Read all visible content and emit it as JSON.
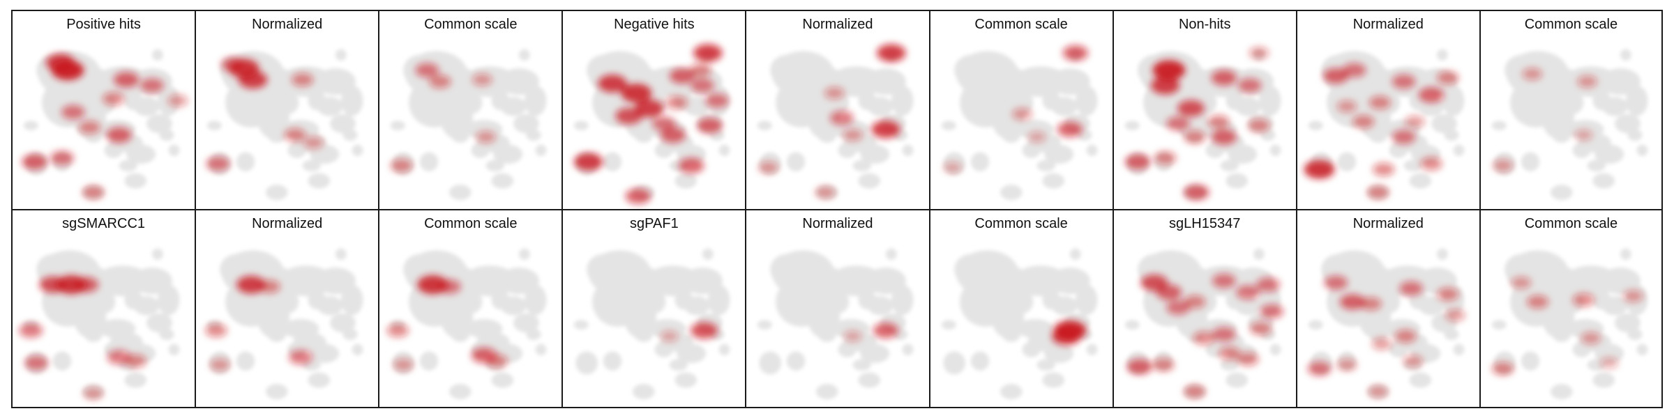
{
  "colors": {
    "background_density": "#e4e4e4",
    "signal": "#c8141c",
    "border": "#1a1a1a"
  },
  "rows": [
    {
      "panels": [
        {
          "title": "Positive hits",
          "hotspots": [
            [
              0.3,
              0.28,
              1.0
            ],
            [
              0.26,
              0.24,
              0.8
            ],
            [
              0.33,
              0.5,
              0.5
            ],
            [
              0.62,
              0.33,
              0.6
            ],
            [
              0.76,
              0.36,
              0.5
            ],
            [
              0.55,
              0.43,
              0.4
            ],
            [
              0.58,
              0.62,
              0.6
            ],
            [
              0.42,
              0.58,
              0.4
            ],
            [
              0.12,
              0.76,
              0.6
            ],
            [
              0.27,
              0.74,
              0.5
            ],
            [
              0.44,
              0.92,
              0.4
            ],
            [
              0.9,
              0.44,
              0.3
            ]
          ]
        },
        {
          "title": "Normalized",
          "hotspots": [
            [
              0.26,
              0.27,
              0.9
            ],
            [
              0.31,
              0.33,
              0.8
            ],
            [
              0.2,
              0.25,
              0.5
            ],
            [
              0.58,
              0.33,
              0.4
            ],
            [
              0.54,
              0.62,
              0.4
            ],
            [
              0.12,
              0.77,
              0.5
            ],
            [
              0.64,
              0.66,
              0.3
            ]
          ]
        },
        {
          "title": "Common scale",
          "hotspots": [
            [
              0.26,
              0.28,
              0.5
            ],
            [
              0.33,
              0.34,
              0.4
            ],
            [
              0.56,
              0.33,
              0.3
            ],
            [
              0.58,
              0.63,
              0.3
            ],
            [
              0.12,
              0.78,
              0.4
            ]
          ]
        },
        {
          "title": "Negative hits",
          "hotspots": [
            [
              0.27,
              0.35,
              0.8
            ],
            [
              0.4,
              0.4,
              0.9
            ],
            [
              0.47,
              0.48,
              0.8
            ],
            [
              0.36,
              0.52,
              0.7
            ],
            [
              0.65,
              0.31,
              0.6
            ],
            [
              0.76,
              0.36,
              0.5
            ],
            [
              0.84,
              0.44,
              0.5
            ],
            [
              0.55,
              0.56,
              0.5
            ],
            [
              0.6,
              0.62,
              0.6
            ],
            [
              0.8,
              0.57,
              0.6
            ],
            [
              0.75,
              0.28,
              0.4
            ],
            [
              0.14,
              0.76,
              0.8
            ],
            [
              0.7,
              0.78,
              0.6
            ],
            [
              0.79,
              0.19,
              0.8
            ],
            [
              0.41,
              0.94,
              0.6
            ],
            [
              0.62,
              0.45,
              0.4
            ]
          ]
        },
        {
          "title": "Normalized",
          "hotspots": [
            [
              0.79,
              0.19,
              0.8
            ],
            [
              0.76,
              0.59,
              0.8
            ],
            [
              0.52,
              0.53,
              0.5
            ],
            [
              0.48,
              0.4,
              0.3
            ],
            [
              0.58,
              0.62,
              0.3
            ],
            [
              0.12,
              0.79,
              0.3
            ],
            [
              0.43,
              0.92,
              0.3
            ]
          ]
        },
        {
          "title": "Common scale",
          "hotspots": [
            [
              0.79,
              0.19,
              0.6
            ],
            [
              0.76,
              0.59,
              0.6
            ],
            [
              0.5,
              0.51,
              0.3
            ],
            [
              0.58,
              0.63,
              0.2
            ],
            [
              0.12,
              0.79,
              0.2
            ]
          ]
        },
        {
          "title": "Non-hits",
          "hotspots": [
            [
              0.3,
              0.28,
              1.0
            ],
            [
              0.28,
              0.36,
              0.8
            ],
            [
              0.42,
              0.48,
              0.7
            ],
            [
              0.35,
              0.56,
              0.5
            ],
            [
              0.6,
              0.32,
              0.6
            ],
            [
              0.74,
              0.36,
              0.5
            ],
            [
              0.57,
              0.55,
              0.4
            ],
            [
              0.6,
              0.63,
              0.6
            ],
            [
              0.79,
              0.57,
              0.4
            ],
            [
              0.44,
              0.63,
              0.4
            ],
            [
              0.13,
              0.76,
              0.6
            ],
            [
              0.28,
              0.74,
              0.4
            ],
            [
              0.45,
              0.92,
              0.6
            ],
            [
              0.79,
              0.19,
              0.3
            ]
          ]
        },
        {
          "title": "Normalized",
          "hotspots": [
            [
              0.21,
              0.31,
              0.6
            ],
            [
              0.31,
              0.28,
              0.5
            ],
            [
              0.45,
              0.45,
              0.4
            ],
            [
              0.58,
              0.34,
              0.5
            ],
            [
              0.73,
              0.41,
              0.6
            ],
            [
              0.82,
              0.32,
              0.4
            ],
            [
              0.36,
              0.55,
              0.4
            ],
            [
              0.58,
              0.63,
              0.5
            ],
            [
              0.12,
              0.8,
              0.9
            ],
            [
              0.47,
              0.8,
              0.4
            ],
            [
              0.73,
              0.77,
              0.4
            ],
            [
              0.44,
              0.92,
              0.4
            ],
            [
              0.64,
              0.55,
              0.3
            ],
            [
              0.27,
              0.47,
              0.3
            ]
          ]
        },
        {
          "title": "Common scale",
          "hotspots": [
            [
              0.28,
              0.3,
              0.3
            ],
            [
              0.58,
              0.34,
              0.3
            ],
            [
              0.12,
              0.78,
              0.3
            ],
            [
              0.56,
              0.62,
              0.2
            ]
          ]
        }
      ]
    },
    {
      "panels": [
        {
          "title": "sgSMARCC1",
          "hotspots": [
            [
              0.22,
              0.36,
              0.7
            ],
            [
              0.32,
              0.36,
              0.9
            ],
            [
              0.4,
              0.36,
              0.6
            ],
            [
              0.58,
              0.74,
              0.5
            ],
            [
              0.67,
              0.76,
              0.4
            ],
            [
              0.1,
              0.6,
              0.5
            ],
            [
              0.13,
              0.77,
              0.5
            ],
            [
              0.44,
              0.93,
              0.3
            ]
          ]
        },
        {
          "title": "Normalized",
          "hotspots": [
            [
              0.3,
              0.36,
              0.8
            ],
            [
              0.4,
              0.37,
              0.4
            ],
            [
              0.57,
              0.74,
              0.5
            ],
            [
              0.11,
              0.6,
              0.4
            ],
            [
              0.13,
              0.78,
              0.3
            ]
          ]
        },
        {
          "title": "Common scale",
          "hotspots": [
            [
              0.29,
              0.36,
              0.9
            ],
            [
              0.38,
              0.37,
              0.5
            ],
            [
              0.57,
              0.73,
              0.6
            ],
            [
              0.64,
              0.76,
              0.4
            ],
            [
              0.1,
              0.6,
              0.4
            ],
            [
              0.13,
              0.78,
              0.3
            ]
          ]
        },
        {
          "title": "sgPAF1",
          "hotspots": [
            [
              0.77,
              0.6,
              0.7
            ],
            [
              0.58,
              0.63,
              0.2
            ]
          ]
        },
        {
          "title": "Normalized",
          "hotspots": [
            [
              0.76,
              0.6,
              0.6
            ],
            [
              0.58,
              0.63,
              0.2
            ]
          ]
        },
        {
          "title": "Common scale",
          "hotspots": [
            [
              0.76,
              0.6,
              1.0
            ],
            [
              0.74,
              0.63,
              0.8
            ]
          ]
        },
        {
          "title": "sgLH15347",
          "hotspots": [
            [
              0.22,
              0.35,
              0.7
            ],
            [
              0.3,
              0.4,
              0.6
            ],
            [
              0.35,
              0.48,
              0.5
            ],
            [
              0.44,
              0.45,
              0.4
            ],
            [
              0.6,
              0.34,
              0.5
            ],
            [
              0.73,
              0.4,
              0.5
            ],
            [
              0.84,
              0.36,
              0.5
            ],
            [
              0.86,
              0.5,
              0.5
            ],
            [
              0.6,
              0.62,
              0.5
            ],
            [
              0.49,
              0.64,
              0.4
            ],
            [
              0.63,
              0.72,
              0.4
            ],
            [
              0.73,
              0.75,
              0.4
            ],
            [
              0.14,
              0.79,
              0.6
            ],
            [
              0.27,
              0.78,
              0.4
            ],
            [
              0.44,
              0.92,
              0.4
            ],
            [
              0.8,
              0.59,
              0.4
            ]
          ]
        },
        {
          "title": "Normalized",
          "hotspots": [
            [
              0.21,
              0.35,
              0.5
            ],
            [
              0.3,
              0.45,
              0.6
            ],
            [
              0.4,
              0.46,
              0.4
            ],
            [
              0.62,
              0.38,
              0.5
            ],
            [
              0.82,
              0.41,
              0.4
            ],
            [
              0.86,
              0.52,
              0.3
            ],
            [
              0.59,
              0.63,
              0.4
            ],
            [
              0.46,
              0.67,
              0.3
            ],
            [
              0.12,
              0.8,
              0.5
            ],
            [
              0.27,
              0.78,
              0.3
            ],
            [
              0.63,
              0.76,
              0.3
            ],
            [
              0.44,
              0.92,
              0.3
            ]
          ]
        },
        {
          "title": "Common scale",
          "hotspots": [
            [
              0.22,
              0.35,
              0.3
            ],
            [
              0.31,
              0.45,
              0.4
            ],
            [
              0.56,
              0.44,
              0.4
            ],
            [
              0.83,
              0.42,
              0.3
            ],
            [
              0.6,
              0.64,
              0.3
            ],
            [
              0.12,
              0.8,
              0.4
            ],
            [
              0.7,
              0.77,
              0.2
            ]
          ]
        }
      ]
    }
  ]
}
